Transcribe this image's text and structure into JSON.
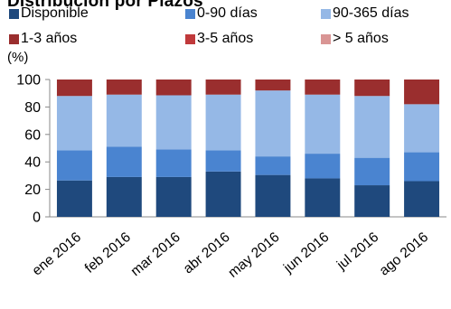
{
  "title": "Distribución por Plazos",
  "chart_data": {
    "type": "bar",
    "stacked": true,
    "ylabel": "(%)",
    "ylim": [
      0,
      100
    ],
    "yticks": [
      0,
      20,
      40,
      60,
      80,
      100
    ],
    "grid": false,
    "legend_position": "top",
    "categories": [
      "ene 2016",
      "feb 2016",
      "mar 2016",
      "abr 2016",
      "may 2016",
      "jun 2016",
      "jul 2016",
      "ago 2016"
    ],
    "series": [
      {
        "name": "Disponible",
        "color": "#1F497D",
        "values": [
          26.5,
          29,
          29,
          33,
          30.5,
          28,
          23,
          26
        ]
      },
      {
        "name": "0-90 días",
        "color": "#4A84D0",
        "values": [
          22,
          22,
          20,
          15.5,
          13.5,
          18,
          20,
          21
        ]
      },
      {
        "name": "90-365 días",
        "color": "#95B8E6",
        "values": [
          39.5,
          38,
          39.5,
          40.5,
          48,
          43,
          45,
          35
        ]
      },
      {
        "name": "1-3 años",
        "color": "#9A2E2E",
        "values": [
          12,
          11,
          11.5,
          11,
          8,
          11,
          12,
          18
        ]
      },
      {
        "name": "3-5 años",
        "color": "#C0393B",
        "values": [
          0,
          0,
          0,
          0,
          0,
          0,
          0,
          0
        ]
      },
      {
        "name": "> 5 años",
        "color": "#D99594",
        "values": [
          0,
          0,
          0,
          0,
          0,
          0,
          0,
          0
        ]
      }
    ]
  }
}
